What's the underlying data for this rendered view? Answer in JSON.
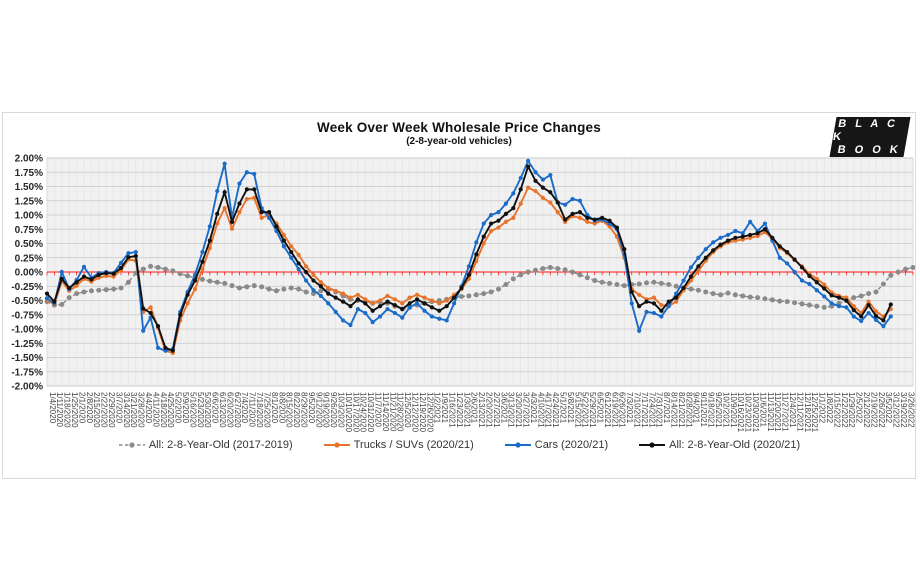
{
  "panel": {
    "border_color": "#d9d9d9",
    "plot_bg": "#f1f1f1"
  },
  "logo": {
    "line1": "B L A C K",
    "line2": "B O O K",
    "bg": "#161616",
    "text_color": "#ffffff"
  },
  "chart_data": {
    "type": "line",
    "title": "Week Over Week Wholesale Price Changes",
    "subtitle": "(2-8-year-old vehicles)",
    "xlabel": "",
    "ylabel": "",
    "ylim": [
      -2.0,
      2.0
    ],
    "ytick_step": 0.25,
    "ytick_format": "0.00%",
    "grid": true,
    "zero_line_color": "#ff1a1a",
    "gridline_color_h": "#c6c6c6",
    "gridline_color_v": "#e2e2e2",
    "legend_position": "bottom",
    "categories": [
      "1/4/2020",
      "1/11/2020",
      "1/18/2020",
      "1/25/2020",
      "2/1/2020",
      "2/8/2020",
      "2/15/2020",
      "2/22/2020",
      "2/29/2020",
      "3/7/2020",
      "3/14/2020",
      "3/21/2020",
      "3/28/2020",
      "4/4/2020",
      "4/11/2020",
      "4/18/2020",
      "4/25/2020",
      "5/2/2020",
      "5/9/2020",
      "5/16/2020",
      "5/23/2020",
      "5/30/2020",
      "6/6/2020",
      "6/13/2020",
      "6/20/2020",
      "6/27/2020",
      "7/4/2020",
      "7/11/2020",
      "7/18/2020",
      "7/25/2020",
      "8/1/2020",
      "8/8/2020",
      "8/15/2020",
      "8/22/2020",
      "8/29/2020",
      "9/5/2020",
      "9/12/2020",
      "9/19/2020",
      "9/26/2020",
      "10/3/2020",
      "10/10/2020",
      "10/17/2020",
      "10/24/2020",
      "10/31/2020",
      "11/7/2020",
      "11/14/2020",
      "11/21/2020",
      "11/28/2020",
      "12/5/2020",
      "12/12/2020",
      "12/19/2020",
      "12/26/2020",
      "1/2/2021",
      "1/9/2021",
      "1/16/2021",
      "1/23/2021",
      "1/30/2021",
      "2/6/2021",
      "2/13/2021",
      "2/20/2021",
      "2/27/2021",
      "3/6/2021",
      "3/13/2021",
      "3/20/2021",
      "3/27/2021",
      "4/3/2021",
      "4/10/2021",
      "4/17/2021",
      "4/24/2021",
      "5/1/2021",
      "5/8/2021",
      "5/15/2021",
      "5/22/2021",
      "5/29/2021",
      "6/5/2021",
      "6/12/2021",
      "6/19/2021",
      "6/26/2021",
      "7/3/2021",
      "7/10/2021",
      "7/17/2021",
      "7/24/2021",
      "7/31/2021",
      "8/7/2021",
      "8/14/2021",
      "8/21/2021",
      "8/28/2021",
      "9/4/2021",
      "9/11/2021",
      "9/18/2021",
      "9/25/2021",
      "10/2/2021",
      "10/9/2021",
      "10/16/2021",
      "10/23/2021",
      "10/30/2021",
      "11/6/2021",
      "11/13/2021",
      "11/20/2021",
      "11/27/2021",
      "12/4/2021",
      "12/11/2021",
      "12/18/2021",
      "12/25/2021",
      "1/1/2022",
      "1/8/2022",
      "1/15/2022",
      "1/22/2022",
      "1/29/2022",
      "2/5/2022",
      "2/12/2022",
      "2/19/2022",
      "2/26/2022",
      "3/5/2022",
      "3/12/2022",
      "3/19/2022",
      "3/26/2022",
      "4/2/2022"
    ],
    "series": [
      {
        "name": "All: 2-8-Year-Old (2017-2019)",
        "color": "#8a8a8a",
        "style": "dashed",
        "values": [
          -0.52,
          -0.58,
          -0.57,
          -0.45,
          -0.38,
          -0.35,
          -0.33,
          -0.32,
          -0.31,
          -0.3,
          -0.28,
          -0.18,
          -0.02,
          0.05,
          0.1,
          0.08,
          0.05,
          0.02,
          -0.03,
          -0.07,
          -0.1,
          -0.13,
          -0.16,
          -0.18,
          -0.2,
          -0.24,
          -0.28,
          -0.26,
          -0.24,
          -0.26,
          -0.3,
          -0.33,
          -0.3,
          -0.28,
          -0.3,
          -0.35,
          -0.38,
          -0.33,
          -0.3,
          -0.35,
          -0.42,
          -0.48,
          -0.5,
          -0.52,
          -0.55,
          -0.53,
          -0.55,
          -0.6,
          -0.65,
          -0.62,
          -0.58,
          -0.55,
          -0.52,
          -0.5,
          -0.48,
          -0.45,
          -0.43,
          -0.42,
          -0.4,
          -0.38,
          -0.35,
          -0.3,
          -0.22,
          -0.12,
          -0.05,
          0.0,
          0.03,
          0.06,
          0.08,
          0.06,
          0.04,
          0.0,
          -0.05,
          -0.1,
          -0.15,
          -0.18,
          -0.2,
          -0.22,
          -0.24,
          -0.22,
          -0.21,
          -0.19,
          -0.18,
          -0.2,
          -0.22,
          -0.25,
          -0.28,
          -0.3,
          -0.32,
          -0.35,
          -0.38,
          -0.4,
          -0.37,
          -0.4,
          -0.42,
          -0.44,
          -0.45,
          -0.47,
          -0.49,
          -0.51,
          -0.52,
          -0.54,
          -0.56,
          -0.58,
          -0.6,
          -0.62,
          -0.6,
          -0.55,
          -0.5,
          -0.45,
          -0.42,
          -0.38,
          -0.35,
          -0.21,
          -0.06,
          0.0,
          0.05,
          0.08
        ]
      },
      {
        "name": "Trucks / SUVs (2020/21)",
        "color": "#e8742c",
        "style": "solid",
        "values": [
          -0.49,
          -0.57,
          -0.16,
          -0.33,
          -0.24,
          -0.12,
          -0.17,
          -0.1,
          -0.07,
          -0.08,
          0.03,
          0.22,
          0.2,
          -0.7,
          -0.62,
          -0.98,
          -1.38,
          -1.42,
          -0.85,
          -0.55,
          -0.3,
          0.05,
          0.42,
          0.85,
          1.12,
          0.76,
          1.05,
          1.28,
          1.3,
          0.95,
          1.0,
          0.85,
          0.65,
          0.45,
          0.3,
          0.1,
          -0.05,
          -0.18,
          -0.28,
          -0.33,
          -0.38,
          -0.45,
          -0.4,
          -0.48,
          -0.55,
          -0.5,
          -0.42,
          -0.48,
          -0.55,
          -0.45,
          -0.4,
          -0.45,
          -0.5,
          -0.55,
          -0.5,
          -0.4,
          -0.3,
          -0.12,
          0.19,
          0.5,
          0.72,
          0.78,
          0.88,
          0.95,
          1.2,
          1.48,
          1.42,
          1.3,
          1.22,
          1.05,
          0.88,
          0.98,
          0.95,
          0.88,
          0.85,
          0.9,
          0.8,
          0.62,
          0.25,
          -0.3,
          -0.4,
          -0.48,
          -0.45,
          -0.58,
          -0.6,
          -0.52,
          -0.32,
          -0.15,
          0.02,
          0.2,
          0.35,
          0.45,
          0.52,
          0.55,
          0.57,
          0.6,
          0.63,
          0.7,
          0.58,
          0.42,
          0.33,
          0.21,
          0.1,
          -0.03,
          -0.12,
          -0.22,
          -0.36,
          -0.42,
          -0.45,
          -0.6,
          -0.72,
          -0.52,
          -0.69,
          -0.78,
          -0.65
        ]
      },
      {
        "name": "Cars (2020/21)",
        "color": "#1b6cc8",
        "style": "solid",
        "values": [
          -0.46,
          -0.55,
          0.0,
          -0.3,
          -0.14,
          0.09,
          -0.1,
          -0.02,
          0.0,
          -0.02,
          0.16,
          0.33,
          0.35,
          -1.03,
          -0.8,
          -1.33,
          -1.38,
          -1.35,
          -0.7,
          -0.35,
          -0.05,
          0.35,
          0.8,
          1.42,
          1.9,
          0.95,
          1.55,
          1.75,
          1.72,
          1.12,
          0.95,
          0.72,
          0.45,
          0.25,
          0.05,
          -0.15,
          -0.32,
          -0.42,
          -0.55,
          -0.7,
          -0.85,
          -0.93,
          -0.65,
          -0.72,
          -0.88,
          -0.78,
          -0.65,
          -0.72,
          -0.8,
          -0.62,
          -0.55,
          -0.68,
          -0.78,
          -0.82,
          -0.85,
          -0.55,
          -0.25,
          0.1,
          0.52,
          0.85,
          1.0,
          1.05,
          1.2,
          1.38,
          1.65,
          1.95,
          1.75,
          1.62,
          1.7,
          1.22,
          1.18,
          1.28,
          1.25,
          1.0,
          0.9,
          0.92,
          0.85,
          0.75,
          0.3,
          -0.55,
          -1.03,
          -0.7,
          -0.72,
          -0.78,
          -0.6,
          -0.38,
          -0.15,
          0.08,
          0.25,
          0.4,
          0.52,
          0.6,
          0.65,
          0.72,
          0.68,
          0.88,
          0.72,
          0.85,
          0.55,
          0.25,
          0.15,
          0.0,
          -0.15,
          -0.21,
          -0.32,
          -0.43,
          -0.55,
          -0.6,
          -0.62,
          -0.78,
          -0.86,
          -0.72,
          -0.84,
          -0.95,
          -0.78
        ]
      },
      {
        "name": "All: 2-8-Year-Old (2020/21)",
        "color": "#111111",
        "style": "solid",
        "values": [
          -0.38,
          -0.52,
          -0.12,
          -0.28,
          -0.18,
          -0.08,
          -0.13,
          -0.05,
          -0.02,
          -0.03,
          0.07,
          0.26,
          0.28,
          -0.64,
          -0.72,
          -0.95,
          -1.33,
          -1.38,
          -0.75,
          -0.4,
          -0.15,
          0.18,
          0.55,
          1.02,
          1.4,
          0.88,
          1.2,
          1.45,
          1.45,
          1.05,
          1.05,
          0.8,
          0.55,
          0.35,
          0.15,
          0.0,
          -0.15,
          -0.25,
          -0.38,
          -0.45,
          -0.52,
          -0.6,
          -0.48,
          -0.55,
          -0.68,
          -0.6,
          -0.52,
          -0.58,
          -0.65,
          -0.55,
          -0.48,
          -0.55,
          -0.62,
          -0.68,
          -0.6,
          -0.45,
          -0.28,
          -0.05,
          0.31,
          0.62,
          0.85,
          0.9,
          1.02,
          1.12,
          1.45,
          1.85,
          1.6,
          1.48,
          1.4,
          1.22,
          0.92,
          1.02,
          1.05,
          0.95,
          0.92,
          0.95,
          0.9,
          0.78,
          0.4,
          -0.35,
          -0.6,
          -0.52,
          -0.55,
          -0.68,
          -0.52,
          -0.45,
          -0.28,
          -0.08,
          0.1,
          0.25,
          0.38,
          0.48,
          0.55,
          0.6,
          0.62,
          0.65,
          0.68,
          0.75,
          0.6,
          0.45,
          0.35,
          0.22,
          0.08,
          -0.07,
          -0.18,
          -0.29,
          -0.41,
          -0.45,
          -0.5,
          -0.67,
          -0.78,
          -0.58,
          -0.77,
          -0.85,
          -0.57
        ]
      }
    ]
  }
}
